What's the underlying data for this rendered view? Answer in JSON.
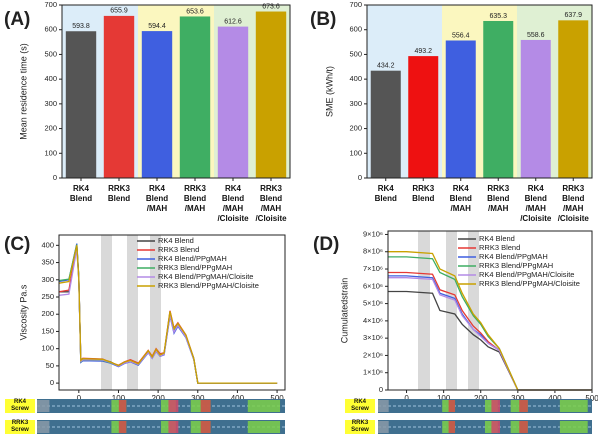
{
  "chart_data": [
    {
      "type": "bar",
      "panel_label": "(A)",
      "y_label": "Mean residence time (s)",
      "categories": [
        "RK4\nBlend",
        "RRK3\nBlend",
        "RK4\nBlend\n/MAH",
        "RRK3\nBlend\n/MAH",
        "RK4\nBlend\n/MAH\n/Cloisite",
        "RRK3\nBlend\n/MAH\n/Cloisite"
      ],
      "values": [
        593.8,
        655.9,
        594.4,
        653.6,
        612.6,
        673.6
      ],
      "colors": [
        "#555555",
        "#e53935",
        "#3f5fe0",
        "#3fae63",
        "#b48be6",
        "#c9a100"
      ],
      "region_colors": [
        "#dcedf9",
        "#fbf7bf",
        "#dff0d3"
      ],
      "ylim": [
        0,
        700
      ],
      "yticks": [
        0,
        100,
        200,
        300,
        400,
        500,
        600,
        700
      ]
    },
    {
      "type": "bar",
      "panel_label": "(B)",
      "y_label": "SME (kWh/t)",
      "categories": [
        "RK4\nBlend",
        "RRK3\nBlend",
        "RK4\nBlend\n/MAH",
        "RRK3\nBlend\n/MAH",
        "RK4\nBlend\n/MAH\n/Cloisite",
        "RRK3\nBlend\n/MAH\n/Cloisite"
      ],
      "values": [
        434.2,
        493.2,
        556.4,
        635.3,
        558.6,
        637.9
      ],
      "colors": [
        "#555555",
        "#ee1111",
        "#3f5fe0",
        "#3fae63",
        "#b48be6",
        "#c9a100"
      ],
      "region_colors": [
        "#dcedf9",
        "#fbf7bf",
        "#dff0d3"
      ],
      "ylim": [
        0,
        700
      ],
      "yticks": [
        0,
        100,
        200,
        300,
        400,
        500,
        600,
        700
      ]
    },
    {
      "type": "line",
      "panel_label": "(C)",
      "y_label": "Viscosity Pa.s",
      "x": [
        -50,
        -25,
        -5,
        0,
        5,
        10,
        60,
        80,
        100,
        115,
        130,
        150,
        175,
        185,
        195,
        205,
        215,
        230,
        240,
        250,
        270,
        290,
        300,
        500
      ],
      "series": [
        {
          "name": "RK4 Blend",
          "color": "#444444",
          "values": [
            265,
            265,
            395,
            300,
            65,
            70,
            68,
            62,
            50,
            60,
            65,
            55,
            90,
            75,
            95,
            80,
            85,
            200,
            150,
            170,
            135,
            70,
            0,
            0
          ]
        },
        {
          "name": "RRK3 Blend",
          "color": "#e53935",
          "values": [
            265,
            270,
            400,
            305,
            68,
            72,
            70,
            60,
            52,
            62,
            68,
            58,
            95,
            78,
            100,
            85,
            88,
            210,
            160,
            175,
            140,
            72,
            0,
            0
          ]
        },
        {
          "name": "RK4 Blend/PPgMAH",
          "color": "#3f5fe0",
          "values": [
            295,
            300,
            405,
            310,
            60,
            65,
            64,
            58,
            48,
            57,
            62,
            52,
            88,
            72,
            92,
            78,
            82,
            195,
            145,
            165,
            132,
            68,
            0,
            0
          ]
        },
        {
          "name": "RRK3 Blend/PPgMAH",
          "color": "#3fae63",
          "values": [
            298,
            302,
            402,
            308,
            62,
            67,
            66,
            59,
            50,
            60,
            64,
            54,
            92,
            74,
            96,
            80,
            86,
            205,
            155,
            170,
            137,
            71,
            0,
            0
          ]
        },
        {
          "name": "RK4 Blend/PPgMAH/Cloisite",
          "color": "#b48be6",
          "values": [
            255,
            258,
            390,
            298,
            63,
            68,
            67,
            60,
            49,
            58,
            63,
            54,
            89,
            73,
            93,
            79,
            83,
            198,
            148,
            168,
            134,
            69,
            0,
            0
          ]
        },
        {
          "name": "RRK3 Blend/PPgMAH/Cloisite",
          "color": "#c9a100",
          "values": [
            290,
            295,
            400,
            305,
            66,
            71,
            69,
            61,
            51,
            61,
            66,
            56,
            94,
            76,
            98,
            82,
            87,
            208,
            158,
            173,
            139,
            71,
            0,
            0
          ]
        }
      ],
      "xlim": [
        -50,
        520
      ],
      "ylim": [
        -20,
        430
      ],
      "xticks": [
        0,
        100,
        200,
        300,
        400,
        500
      ],
      "yticks": [
        0,
        50,
        100,
        150,
        200,
        250,
        300,
        350,
        400
      ],
      "legend": "upper right",
      "screw_labels": [
        "RK4\nScrew",
        "RRK3\nScrew"
      ]
    },
    {
      "type": "line",
      "panel_label": "(D)",
      "y_label": "Cumulatedstrain",
      "x": [
        -50,
        0,
        70,
        90,
        130,
        150,
        180,
        200,
        220,
        250,
        300,
        500
      ],
      "series": [
        {
          "name": "RK4 Blend",
          "color": "#444444",
          "values": [
            5700000,
            5700000,
            5600000,
            4600000,
            4400000,
            3800000,
            3200000,
            2900000,
            2500000,
            2200000,
            0,
            0
          ]
        },
        {
          "name": "RRK3 Blend",
          "color": "#e53935",
          "values": [
            6800000,
            6800000,
            6700000,
            5800000,
            5500000,
            4600000,
            3700000,
            3300000,
            2800000,
            2300000,
            0,
            0
          ]
        },
        {
          "name": "RK4 Blend/PPgMAH",
          "color": "#3f5fe0",
          "values": [
            6600000,
            6600000,
            6500000,
            5600000,
            5300000,
            4400000,
            3500000,
            3200000,
            2700000,
            2300000,
            0,
            0
          ]
        },
        {
          "name": "RRK3 Blend/PPgMAH",
          "color": "#3fae63",
          "values": [
            7700000,
            7700000,
            7600000,
            6800000,
            6400000,
            5400000,
            4300000,
            3800000,
            3100000,
            2400000,
            0,
            0
          ]
        },
        {
          "name": "RK4 Blend/PPgMAH/Cloisite",
          "color": "#b48be6",
          "values": [
            6500000,
            6500000,
            6400000,
            5500000,
            5200000,
            4300000,
            3500000,
            3100000,
            2700000,
            2300000,
            0,
            0
          ]
        },
        {
          "name": "RRK3 Blend/PPgMAH/Cloisite",
          "color": "#c9a100",
          "values": [
            8000000,
            8000000,
            7900000,
            7000000,
            6600000,
            5600000,
            4400000,
            3900000,
            3200000,
            2400000,
            0,
            0
          ]
        }
      ],
      "xlim": [
        -50,
        500
      ],
      "ylim": [
        0,
        9200000
      ],
      "xticks": [
        0,
        100,
        200,
        300,
        400,
        500
      ],
      "yticks": [
        0,
        {
          "value": 1000000,
          "label": "1×10⁶"
        },
        {
          "value": 2000000,
          "label": "2×10⁶"
        },
        {
          "value": 3000000,
          "label": "3×10⁶"
        },
        {
          "value": 4000000,
          "label": "4×10⁶"
        },
        {
          "value": 5000000,
          "label": "5×10⁶"
        },
        {
          "value": 6000000,
          "label": "6×10⁶"
        },
        {
          "value": 7000000,
          "label": "7×10⁶"
        },
        {
          "value": 8000000,
          "label": "8×10⁶"
        },
        {
          "value": 9000000,
          "label": "9×10⁶"
        }
      ],
      "legend": "upper right",
      "screw_labels": [
        "RK4\nScrew",
        "RRK3\nScrew"
      ]
    }
  ]
}
